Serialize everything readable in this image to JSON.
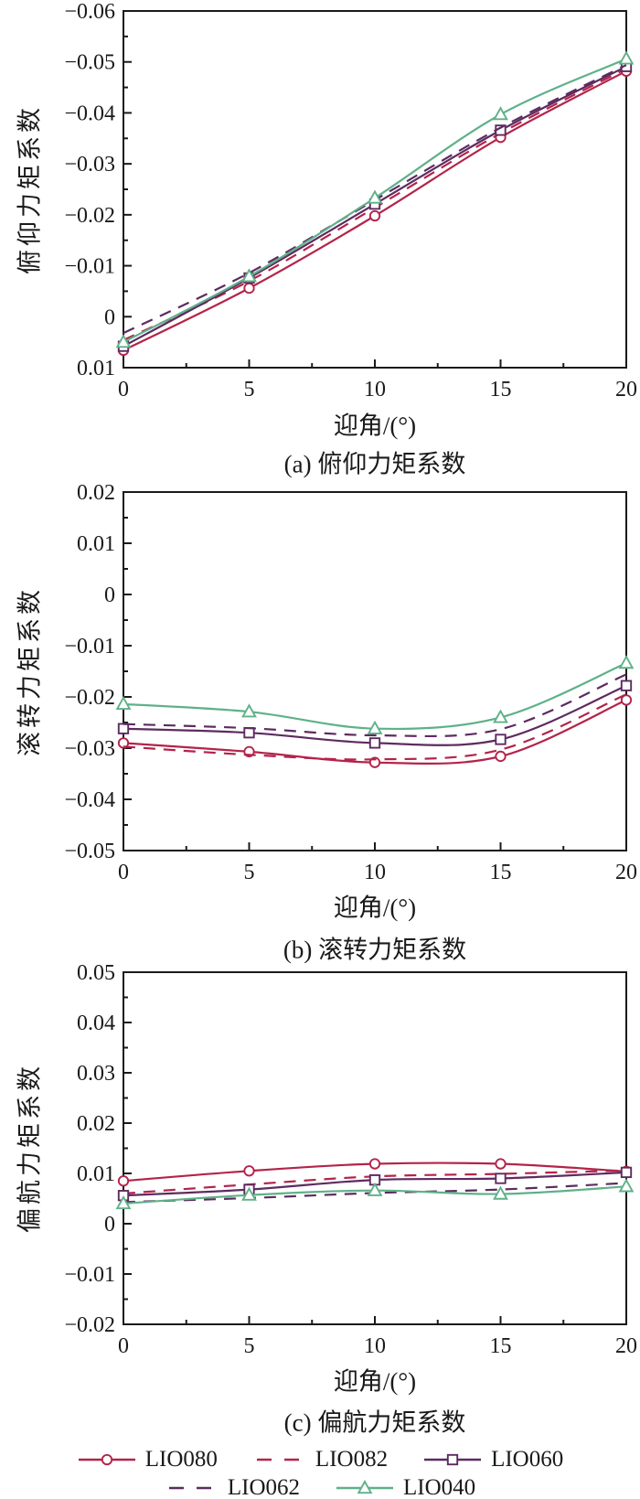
{
  "figure": {
    "xlabel": "迎角/(°)",
    "x_ticks": [
      0,
      5,
      10,
      15,
      20
    ],
    "x_minor_ticks": [
      2.5,
      7.5,
      12.5,
      17.5
    ]
  },
  "colors": {
    "red": "#b3244a",
    "purple": "#5d2b60",
    "green": "#5fb189",
    "axis": "#1a1a1a"
  },
  "legend": {
    "rows": [
      [
        0,
        1,
        2
      ],
      [
        3,
        4
      ]
    ],
    "items": [
      {
        "label": "LIO080",
        "color": "#b3244a",
        "dash": false,
        "marker": "circle"
      },
      {
        "label": "LIO082",
        "color": "#b3244a",
        "dash": true,
        "marker": "none"
      },
      {
        "label": "LIO060",
        "color": "#5d2b60",
        "dash": false,
        "marker": "square"
      },
      {
        "label": "LIO062",
        "color": "#5d2b60",
        "dash": true,
        "marker": "none"
      },
      {
        "label": "LIO040",
        "color": "#5fb189",
        "dash": false,
        "marker": "triangle"
      }
    ]
  },
  "chart_data": [
    {
      "type": "line",
      "subtitle": "(a) 俯仰力矩系数",
      "ylabel": "俯仰力矩系数",
      "xlabel": "迎角/(°)",
      "x": [
        0,
        5,
        10,
        15,
        20
      ],
      "xlim": [
        0,
        20
      ],
      "ylim_top": -0.06,
      "ylim_bottom": 0.01,
      "yticks": [
        -0.06,
        -0.05,
        -0.04,
        -0.03,
        -0.02,
        -0.01,
        0,
        0.01
      ],
      "y_axis_inverted": true,
      "grid": false,
      "series": [
        {
          "name": "LIO080",
          "color": "#b3244a",
          "dash": false,
          "marker": "circle",
          "values": [
            0.0066,
            -0.0056,
            -0.0198,
            -0.0352,
            -0.0482
          ]
        },
        {
          "name": "LIO082",
          "color": "#b3244a",
          "dash": true,
          "marker": "none",
          "values": [
            0.0046,
            -0.007,
            -0.0214,
            -0.036,
            -0.0487
          ]
        },
        {
          "name": "LIO060",
          "color": "#5d2b60",
          "dash": false,
          "marker": "square",
          "values": [
            0.0058,
            -0.0076,
            -0.0221,
            -0.0366,
            -0.0491
          ]
        },
        {
          "name": "LIO062",
          "color": "#5d2b60",
          "dash": true,
          "marker": "none",
          "values": [
            0.0032,
            -0.0086,
            -0.0229,
            -0.0371,
            -0.0494
          ]
        },
        {
          "name": "LIO040",
          "color": "#5fb189",
          "dash": false,
          "marker": "triangle",
          "values": [
            0.005,
            -0.0079,
            -0.0233,
            -0.0397,
            -0.0506
          ]
        }
      ]
    },
    {
      "type": "line",
      "subtitle": "(b) 滚转力矩系数",
      "ylabel": "滚转力矩系数",
      "xlabel": "迎角/(°)",
      "x": [
        0,
        5,
        10,
        15,
        20
      ],
      "xlim": [
        0,
        20
      ],
      "ylim_top": 0.02,
      "ylim_bottom": -0.05,
      "yticks": [
        0.02,
        0.01,
        0,
        -0.01,
        -0.02,
        -0.03,
        -0.04,
        -0.05
      ],
      "y_axis_inverted": false,
      "grid": false,
      "series": [
        {
          "name": "LIO080",
          "color": "#b3244a",
          "dash": false,
          "marker": "circle",
          "values": [
            -0.029,
            -0.0307,
            -0.0328,
            -0.0316,
            -0.0206
          ]
        },
        {
          "name": "LIO082",
          "color": "#b3244a",
          "dash": true,
          "marker": "none",
          "values": [
            -0.0297,
            -0.0313,
            -0.0322,
            -0.0303,
            -0.0195
          ]
        },
        {
          "name": "LIO060",
          "color": "#5d2b60",
          "dash": false,
          "marker": "square",
          "values": [
            -0.0262,
            -0.027,
            -0.029,
            -0.0283,
            -0.0178
          ]
        },
        {
          "name": "LIO062",
          "color": "#5d2b60",
          "dash": true,
          "marker": "none",
          "values": [
            -0.0253,
            -0.0261,
            -0.0275,
            -0.0263,
            -0.0156
          ]
        },
        {
          "name": "LIO040",
          "color": "#5fb189",
          "dash": false,
          "marker": "triangle",
          "values": [
            -0.0214,
            -0.0229,
            -0.0262,
            -0.024,
            -0.0134
          ]
        }
      ]
    },
    {
      "type": "line",
      "subtitle": "(c) 偏航力矩系数",
      "ylabel": "偏航力矩系数",
      "xlabel": "迎角/(°)",
      "x": [
        0,
        5,
        10,
        15,
        20
      ],
      "xlim": [
        0,
        20
      ],
      "ylim_top": 0.05,
      "ylim_bottom": -0.02,
      "yticks": [
        0.05,
        0.04,
        0.03,
        0.02,
        0.01,
        0,
        -0.01,
        -0.02
      ],
      "y_axis_inverted": false,
      "grid": false,
      "series": [
        {
          "name": "LIO080",
          "color": "#b3244a",
          "dash": false,
          "marker": "circle",
          "values": [
            0.0085,
            0.0105,
            0.0119,
            0.0119,
            0.0104
          ]
        },
        {
          "name": "LIO082",
          "color": "#b3244a",
          "dash": true,
          "marker": "none",
          "values": [
            0.006,
            0.0078,
            0.0094,
            0.0099,
            0.0106
          ]
        },
        {
          "name": "LIO060",
          "color": "#5d2b60",
          "dash": false,
          "marker": "square",
          "values": [
            0.0056,
            0.0068,
            0.0087,
            0.009,
            0.0102
          ]
        },
        {
          "name": "LIO062",
          "color": "#5d2b60",
          "dash": true,
          "marker": "none",
          "values": [
            0.0043,
            0.0051,
            0.0061,
            0.0068,
            0.0081
          ]
        },
        {
          "name": "LIO040",
          "color": "#5fb189",
          "dash": false,
          "marker": "triangle",
          "values": [
            0.004,
            0.0057,
            0.0066,
            0.0059,
            0.0074
          ]
        }
      ]
    }
  ]
}
